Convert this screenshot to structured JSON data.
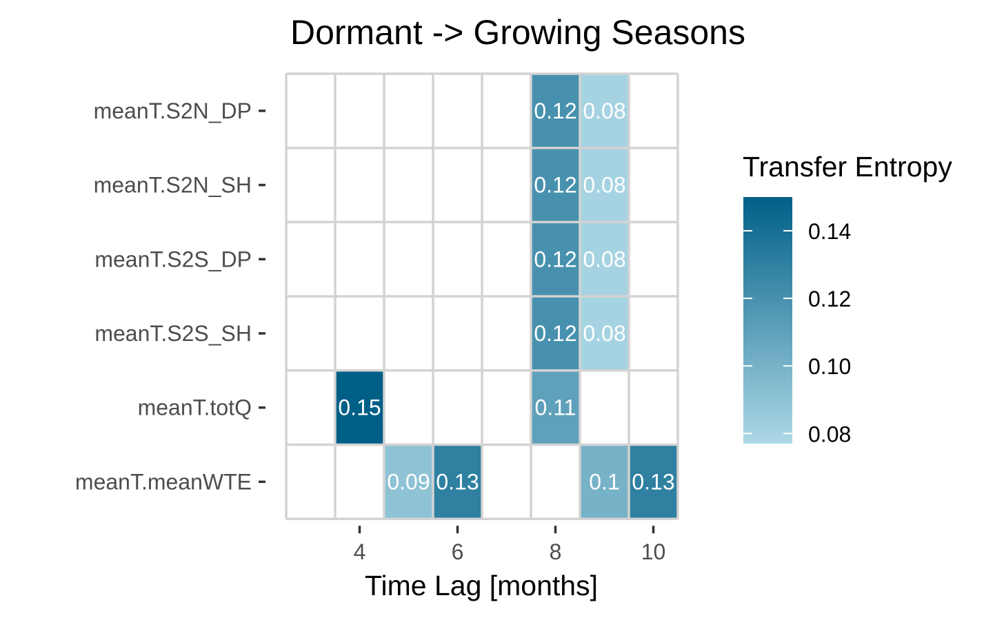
{
  "chart_data": {
    "type": "heatmap",
    "title": "Dormant -> Growing Seasons",
    "xlabel": "Time Lag [months]",
    "ylabel": "",
    "x_columns": [
      3,
      4,
      5,
      6,
      7,
      8,
      9,
      10
    ],
    "x_ticks": [
      4,
      6,
      8,
      10
    ],
    "y_categories": [
      "meanT.S2N_DP",
      "meanT.S2N_SH",
      "meanT.S2S_DP",
      "meanT.S2S_SH",
      "meanT.totQ",
      "meanT.meanWTE"
    ],
    "cells": [
      {
        "y": "meanT.S2N_DP",
        "x": 8,
        "value": 0.12,
        "label": "0.12"
      },
      {
        "y": "meanT.S2N_DP",
        "x": 9,
        "value": 0.08,
        "label": "0.08"
      },
      {
        "y": "meanT.S2N_SH",
        "x": 8,
        "value": 0.12,
        "label": "0.12"
      },
      {
        "y": "meanT.S2N_SH",
        "x": 9,
        "value": 0.08,
        "label": "0.08"
      },
      {
        "y": "meanT.S2S_DP",
        "x": 8,
        "value": 0.12,
        "label": "0.12"
      },
      {
        "y": "meanT.S2S_DP",
        "x": 9,
        "value": 0.08,
        "label": "0.08"
      },
      {
        "y": "meanT.S2S_SH",
        "x": 8,
        "value": 0.12,
        "label": "0.12"
      },
      {
        "y": "meanT.S2S_SH",
        "x": 9,
        "value": 0.08,
        "label": "0.08"
      },
      {
        "y": "meanT.totQ",
        "x": 4,
        "value": 0.15,
        "label": "0.15"
      },
      {
        "y": "meanT.totQ",
        "x": 8,
        "value": 0.11,
        "label": "0.11"
      },
      {
        "y": "meanT.meanWTE",
        "x": 5,
        "value": 0.09,
        "label": "0.09"
      },
      {
        "y": "meanT.meanWTE",
        "x": 6,
        "value": 0.13,
        "label": "0.13"
      },
      {
        "y": "meanT.meanWTE",
        "x": 9,
        "value": 0.1,
        "label": "0.1"
      },
      {
        "y": "meanT.meanWTE",
        "x": 10,
        "value": 0.13,
        "label": "0.13"
      }
    ],
    "legend": {
      "title": "Transfer Entropy",
      "placement": "right",
      "range": [
        0.077,
        0.15
      ],
      "ticks": [
        {
          "value": 0.08,
          "label": "0.08"
        },
        {
          "value": 0.1,
          "label": "0.10"
        },
        {
          "value": 0.12,
          "label": "0.12"
        },
        {
          "value": 0.14,
          "label": "0.14"
        }
      ]
    },
    "colors": {
      "low": "#add8e6",
      "high": "#005f87",
      "grid": "#d3d3d3",
      "cell_text": "#ffffff",
      "tick_text": "#4d4d4d"
    },
    "grid": true
  }
}
